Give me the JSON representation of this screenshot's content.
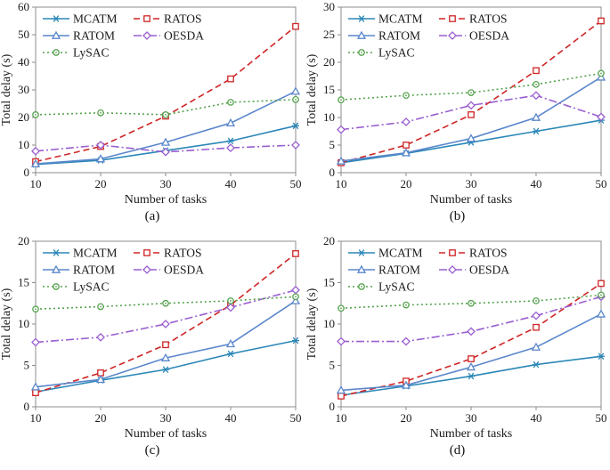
{
  "style": {
    "axis_color": "#8c8c8c",
    "text_color": "#1a1a1a",
    "background": "#ffffff",
    "series_colors": {
      "MCATM": "#2b87b8",
      "RATOS": "#cf2526",
      "RATOM": "#5b87cb",
      "OESDA": "#9a5fd0",
      "LySAC": "#55a24e"
    }
  },
  "legend": {
    "position": "top-left-inside",
    "columns": 2,
    "entries": [
      "MCATM",
      "RATOS",
      "RATOM",
      "OESDA",
      "LySAC"
    ]
  },
  "chart_data": [
    {
      "id": "a",
      "type": "line",
      "caption": "(a)",
      "xlabel": "Number of tasks",
      "ylabel": "Total delay (s)",
      "x": [
        10,
        20,
        30,
        40,
        50
      ],
      "xlim": [
        10,
        50
      ],
      "ylim": [
        0,
        60
      ],
      "ytick_step": 10,
      "grid": false,
      "series": [
        {
          "name": "MCATM",
          "values": [
            3.0,
            4.5,
            8.0,
            11.5,
            17.0
          ],
          "color": "#2b87b8",
          "dash": "solid",
          "marker": "asterisk"
        },
        {
          "name": "RATOS",
          "values": [
            4.0,
            9.5,
            20.5,
            34.0,
            53.0
          ],
          "color": "#cf2526",
          "dash": "dashed",
          "marker": "square"
        },
        {
          "name": "RATOM",
          "values": [
            3.2,
            5.0,
            11.0,
            18.0,
            29.5
          ],
          "color": "#5b87cb",
          "dash": "solid",
          "marker": "triangle"
        },
        {
          "name": "OESDA",
          "values": [
            7.8,
            10.0,
            7.5,
            9.0,
            10.0
          ],
          "color": "#9a5fd0",
          "dash": "dashdot",
          "marker": "diamond"
        },
        {
          "name": "LySAC",
          "values": [
            21.0,
            21.7,
            21.0,
            25.5,
            26.5
          ],
          "color": "#55a24e",
          "dash": "dotted",
          "marker": "circle"
        }
      ]
    },
    {
      "id": "b",
      "type": "line",
      "caption": "(b)",
      "xlabel": "Number of tasks",
      "ylabel": "Total delay (s)",
      "x": [
        10,
        20,
        30,
        40,
        50
      ],
      "xlim": [
        10,
        50
      ],
      "ylim": [
        0,
        30
      ],
      "ytick_step": 5,
      "grid": false,
      "series": [
        {
          "name": "MCATM",
          "values": [
            1.8,
            3.5,
            5.5,
            7.5,
            9.5
          ],
          "color": "#2b87b8",
          "dash": "solid",
          "marker": "asterisk"
        },
        {
          "name": "RATOS",
          "values": [
            1.8,
            5.0,
            10.5,
            18.5,
            27.5
          ],
          "color": "#cf2526",
          "dash": "dashed",
          "marker": "square"
        },
        {
          "name": "RATOM",
          "values": [
            2.1,
            3.6,
            6.2,
            10.0,
            17.3
          ],
          "color": "#5b87cb",
          "dash": "solid",
          "marker": "triangle"
        },
        {
          "name": "OESDA",
          "values": [
            7.8,
            9.2,
            12.2,
            14.0,
            10.1
          ],
          "color": "#9a5fd0",
          "dash": "dashdot",
          "marker": "diamond"
        },
        {
          "name": "LySAC",
          "values": [
            13.2,
            14.0,
            14.5,
            16.0,
            18.0
          ],
          "color": "#55a24e",
          "dash": "dotted",
          "marker": "circle"
        }
      ]
    },
    {
      "id": "c",
      "type": "line",
      "caption": "(c)",
      "xlabel": "Number of tasks",
      "ylabel": "Total delay (s)",
      "x": [
        10,
        20,
        30,
        40,
        50
      ],
      "xlim": [
        10,
        50
      ],
      "ylim": [
        0,
        20
      ],
      "ytick_step": 5,
      "grid": false,
      "series": [
        {
          "name": "MCATM",
          "values": [
            1.8,
            3.2,
            4.5,
            6.4,
            8.0
          ],
          "color": "#2b87b8",
          "dash": "solid",
          "marker": "asterisk"
        },
        {
          "name": "RATOS",
          "values": [
            1.7,
            4.1,
            7.5,
            12.3,
            18.5
          ],
          "color": "#cf2526",
          "dash": "dashed",
          "marker": "square"
        },
        {
          "name": "RATOM",
          "values": [
            2.4,
            3.3,
            5.9,
            7.6,
            12.8
          ],
          "color": "#5b87cb",
          "dash": "solid",
          "marker": "triangle"
        },
        {
          "name": "OESDA",
          "values": [
            7.8,
            8.4,
            10.0,
            12.0,
            14.1
          ],
          "color": "#9a5fd0",
          "dash": "dashdot",
          "marker": "diamond"
        },
        {
          "name": "LySAC",
          "values": [
            11.8,
            12.1,
            12.5,
            12.8,
            13.3
          ],
          "color": "#55a24e",
          "dash": "dotted",
          "marker": "circle"
        }
      ]
    },
    {
      "id": "d",
      "type": "line",
      "caption": "(d)",
      "xlabel": "Number of tasks",
      "ylabel": "Total delay (s)",
      "x": [
        10,
        20,
        30,
        40,
        50
      ],
      "xlim": [
        10,
        50
      ],
      "ylim": [
        0,
        20
      ],
      "ytick_step": 5,
      "grid": false,
      "series": [
        {
          "name": "MCATM",
          "values": [
            1.4,
            2.5,
            3.7,
            5.1,
            6.1
          ],
          "color": "#2b87b8",
          "dash": "solid",
          "marker": "asterisk"
        },
        {
          "name": "RATOS",
          "values": [
            1.3,
            3.1,
            5.8,
            9.6,
            14.9
          ],
          "color": "#cf2526",
          "dash": "dashed",
          "marker": "square"
        },
        {
          "name": "RATOM",
          "values": [
            2.0,
            2.6,
            4.8,
            7.2,
            11.2
          ],
          "color": "#5b87cb",
          "dash": "solid",
          "marker": "triangle"
        },
        {
          "name": "OESDA",
          "values": [
            7.9,
            7.9,
            9.1,
            11.0,
            13.3
          ],
          "color": "#9a5fd0",
          "dash": "dashdot",
          "marker": "diamond"
        },
        {
          "name": "LySAC",
          "values": [
            11.9,
            12.3,
            12.5,
            12.8,
            13.5
          ],
          "color": "#55a24e",
          "dash": "dotted",
          "marker": "circle"
        }
      ]
    }
  ]
}
